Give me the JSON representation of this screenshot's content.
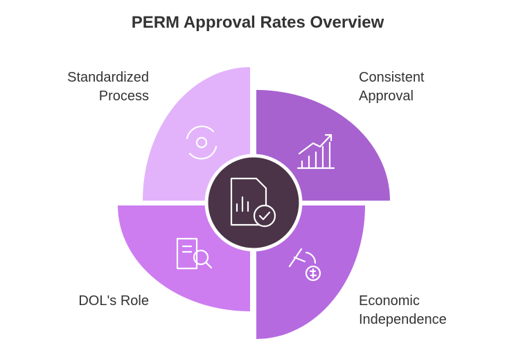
{
  "title": "PERM Approval Rates Overview",
  "segments": [
    {
      "label": [
        "Standardized",
        "Process"
      ]
    },
    {
      "label": [
        "Consistent",
        "Approval"
      ]
    },
    {
      "label": [
        "DOL's Role"
      ]
    },
    {
      "label": [
        "Economic",
        "Independence"
      ]
    }
  ]
}
